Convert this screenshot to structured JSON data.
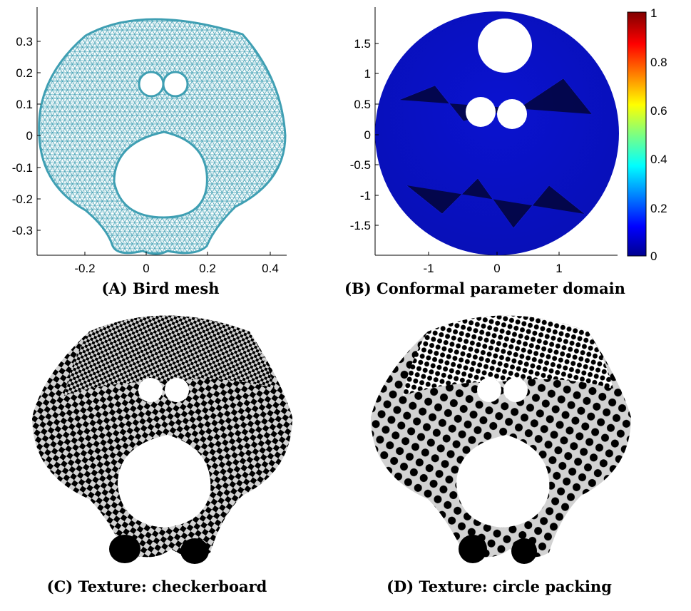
{
  "panels": {
    "a": {
      "caption": "(A) Bird mesh",
      "x_ticks": [
        "-0.2",
        "0",
        "0.2",
        "0.4"
      ],
      "y_ticks": [
        "0.3",
        "0.2",
        "0.1",
        "0",
        "-0.1",
        "-0.2",
        "-0.3"
      ]
    },
    "b": {
      "caption": "(B) Conformal parameter domain",
      "x_ticks": [
        "-1",
        "0",
        "1"
      ],
      "y_ticks": [
        "1.5",
        "1",
        "0.5",
        "0",
        "-0.5",
        "-1",
        "-1.5"
      ],
      "colorbar_ticks": [
        "1",
        "0.8",
        "0.6",
        "0.4",
        "0.2",
        "0"
      ]
    },
    "c": {
      "caption": "(C) Texture: checkerboard"
    },
    "d": {
      "caption": "(D) Texture: circle packing"
    }
  },
  "colors": {
    "mesh": "#3f9fb3",
    "domain_fill": "#0a10c8",
    "checker_dark": "#000000",
    "checker_light": "#d2d2d2"
  },
  "chart_data": [
    {
      "type": "other",
      "title": "",
      "xlim": [
        -0.35,
        0.45
      ],
      "ylim": [
        -0.38,
        0.38
      ],
      "xticks": [
        -0.2,
        0,
        0.2,
        0.4
      ],
      "yticks": [
        -0.3,
        -0.2,
        -0.1,
        0,
        0.1,
        0.2,
        0.3
      ]
    },
    {
      "type": "heatmap",
      "title": "",
      "xlim": [
        -2,
        2
      ],
      "ylim": [
        -2,
        2
      ],
      "xticks": [
        -1,
        0,
        1
      ],
      "yticks": [
        -1.5,
        -1,
        -0.5,
        0,
        0.5,
        1,
        1.5
      ],
      "colorbar_range": [
        0,
        1
      ],
      "colorbar_ticks": [
        0,
        0.2,
        0.4,
        0.6,
        0.8,
        1
      ],
      "colormap": "jet"
    }
  ]
}
